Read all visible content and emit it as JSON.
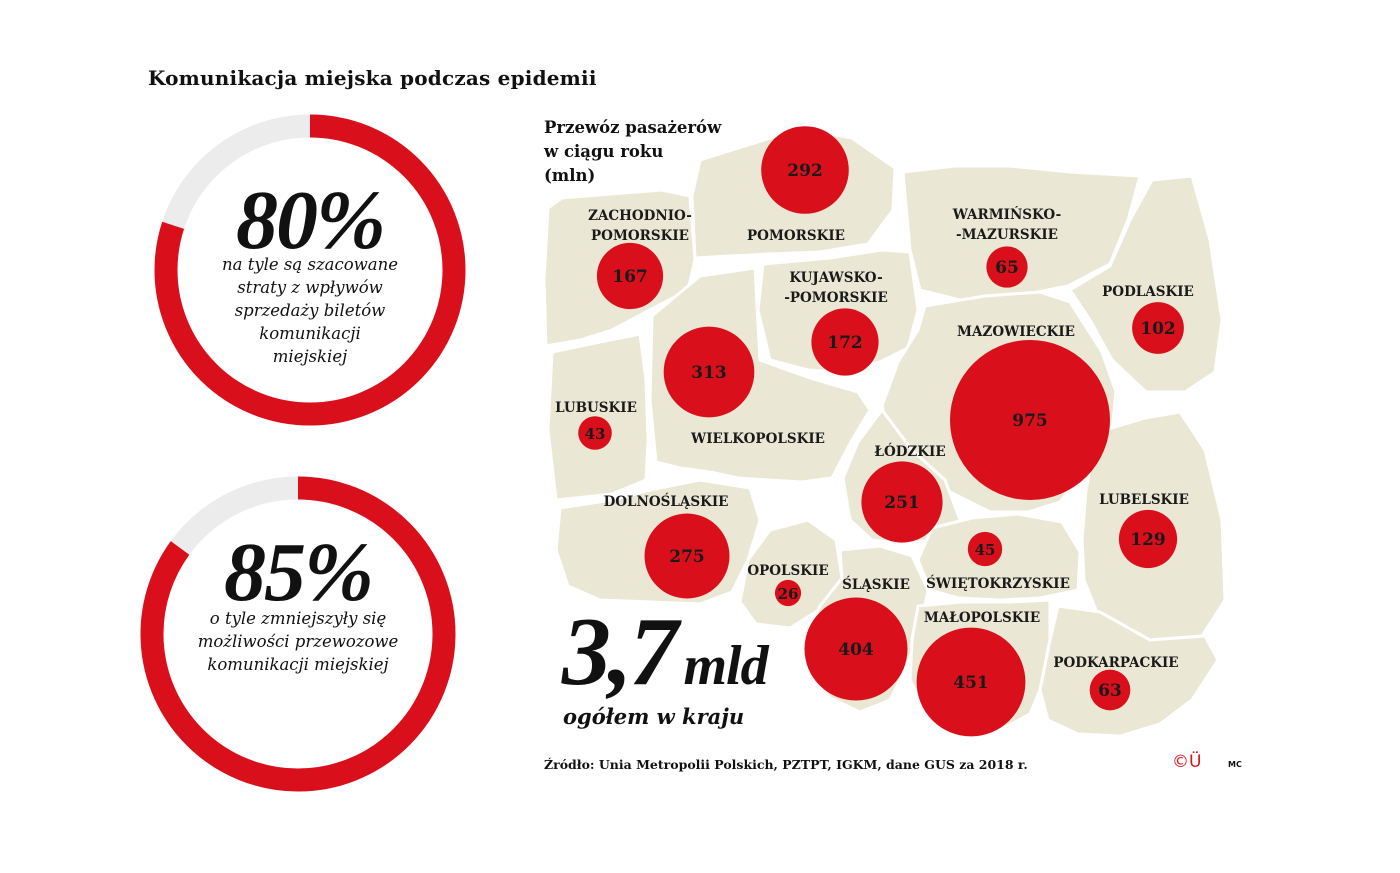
{
  "title": "Komunikacja miejska podczas epidemii",
  "stats": [
    {
      "percent_label": "80%",
      "fill_fraction": 0.8,
      "description": [
        "na tyle są szacowane",
        "straty z wpływów",
        "sprzedaży biletów",
        "komunikacji",
        "miejskiej"
      ]
    },
    {
      "percent_label": "85%",
      "fill_fraction": 0.85,
      "description": [
        "o tyle zmniejszyły się",
        "możliwości przewozowe",
        "komunikacji miejskiej"
      ]
    }
  ],
  "map": {
    "title_lines": [
      "Przewóz pasażerów",
      "w ciągu roku",
      "(mln)"
    ],
    "total_value": "3,7",
    "total_unit": "mld",
    "total_label": "ogółem w kraju"
  },
  "chart_data": {
    "type": "proportional-symbol-map",
    "unit": "mln",
    "regions": [
      {
        "name": "ZACHODNIO-POMORSKIE",
        "label_lines": [
          "ZACHODNIO-",
          "POMORSKIE"
        ],
        "value": 167
      },
      {
        "name": "POMORSKIE",
        "label_lines": [
          "POMORSKIE"
        ],
        "value": 292
      },
      {
        "name": "WARMIŃSKO-MAZURSKIE",
        "label_lines": [
          "WARMIŃSKO-",
          "-MAZURSKIE"
        ],
        "value": 65
      },
      {
        "name": "PODLASKIE",
        "label_lines": [
          "PODLASKIE"
        ],
        "value": 102
      },
      {
        "name": "KUJAWSKO-POMORSKIE",
        "label_lines": [
          "KUJAWSKO-",
          "-POMORSKIE"
        ],
        "value": 172
      },
      {
        "name": "MAZOWIECKIE",
        "label_lines": [
          "MAZOWIECKIE"
        ],
        "value": 975
      },
      {
        "name": "LUBUSKIE",
        "label_lines": [
          "LUBUSKIE"
        ],
        "value": 43
      },
      {
        "name": "WIELKOPOLSKIE",
        "label_lines": [
          "WIELKOPOLSKIE"
        ],
        "value": 313
      },
      {
        "name": "ŁÓDZKIE",
        "label_lines": [
          "ŁÓDZKIE"
        ],
        "value": 251
      },
      {
        "name": "DOLNOŚLĄSKIE",
        "label_lines": [
          "DOLNOŚLĄSKIE"
        ],
        "value": 275
      },
      {
        "name": "OPOLSKIE",
        "label_lines": [
          "OPOLSKIE"
        ],
        "value": 26
      },
      {
        "name": "ŚLĄSKIE",
        "label_lines": [
          "ŚLĄSKIE"
        ],
        "value": 404
      },
      {
        "name": "ŚWIĘTOKRZYSKIE",
        "label_lines": [
          "ŚWIĘTOKRZYSKIE"
        ],
        "value": 45
      },
      {
        "name": "MAŁOPOLSKIE",
        "label_lines": [
          "MAŁOPOLSKIE"
        ],
        "value": 451
      },
      {
        "name": "LUBELSKIE",
        "label_lines": [
          "LUBELSKIE"
        ],
        "value": 129
      },
      {
        "name": "PODKARPACKIE",
        "label_lines": [
          "PODKARPACKIE"
        ],
        "value": 63
      }
    ]
  },
  "source": "Źródło: Unia Metropolii Polskich, PZTPT, IGKM, dane GUS za 2018 r.",
  "logo_text": "©Ü",
  "author": "MC",
  "colors": {
    "accent": "#d9101c",
    "map_fill": "#ebe7d5",
    "track": "#ececec"
  }
}
